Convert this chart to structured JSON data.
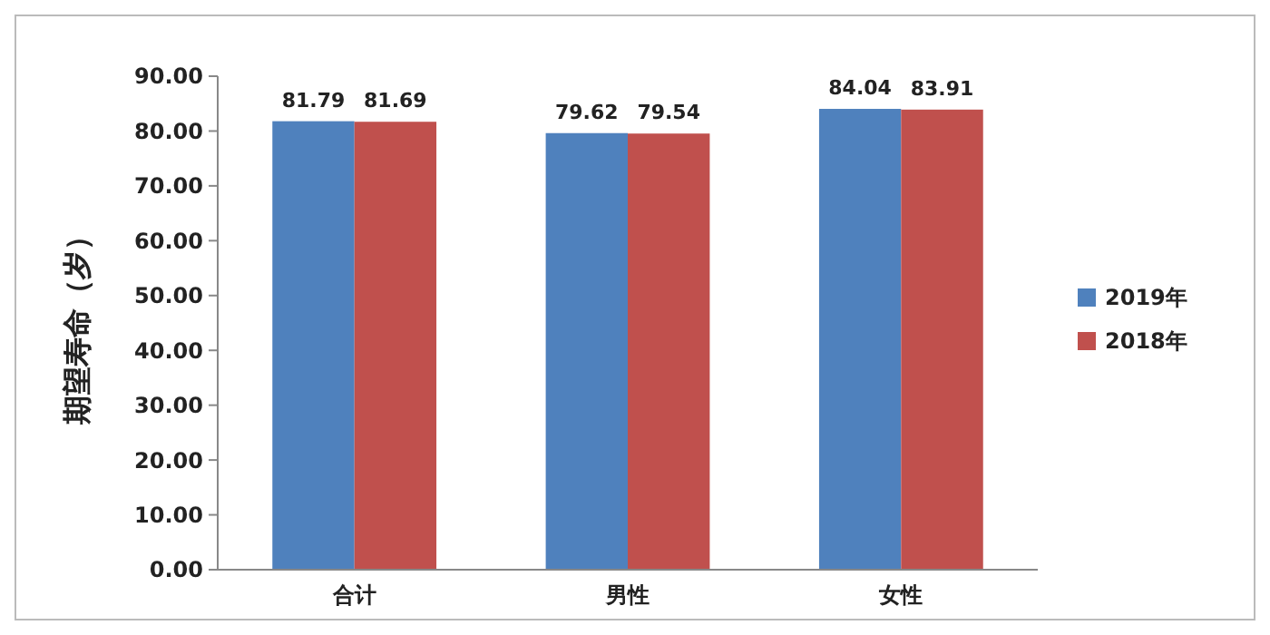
{
  "chart_data": {
    "type": "bar",
    "ylabel": "期望寿命（岁）",
    "categories": [
      "合计",
      "男性",
      "女性"
    ],
    "series": [
      {
        "name": "2019年",
        "color": "#4f81bd",
        "values": [
          81.79,
          79.62,
          84.04
        ]
      },
      {
        "name": "2018年",
        "color": "#c0504d",
        "values": [
          81.69,
          79.54,
          83.91
        ]
      }
    ],
    "ylim": [
      0,
      90
    ],
    "yticks": [
      {
        "value": 0,
        "label": "0.00"
      },
      {
        "value": 10,
        "label": "10.00"
      },
      {
        "value": 20,
        "label": "20.00"
      },
      {
        "value": 30,
        "label": "30.00"
      },
      {
        "value": 40,
        "label": "40.00"
      },
      {
        "value": 50,
        "label": "50.00"
      },
      {
        "value": 60,
        "label": "60.00"
      },
      {
        "value": 70,
        "label": "70.00"
      },
      {
        "value": 80,
        "label": "80.00"
      },
      {
        "value": 90,
        "label": "90.00"
      }
    ],
    "data_labels": true,
    "grid": false,
    "legend": "right"
  }
}
